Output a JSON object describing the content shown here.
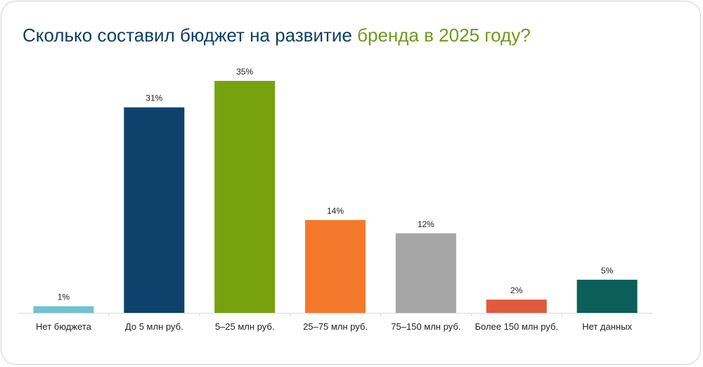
{
  "chart_data": {
    "type": "bar",
    "title_part1": "Сколько составил бюджет на развитие",
    "title_part2": "бренда в 2025 году?",
    "categories": [
      "Нет бюджета",
      "До 5 млн руб.",
      "5–25 млн руб.",
      "25–75 млн руб.",
      "75–150 млн руб.",
      "Более 150 млн руб.",
      "Нет данных"
    ],
    "values": [
      1,
      31,
      35,
      14,
      12,
      2,
      5
    ],
    "value_labels": [
      "1%",
      "31%",
      "35%",
      "14%",
      "12%",
      "2%",
      "5%"
    ],
    "colors": [
      "#71c3ce",
      "#0e426d",
      "#77a20e",
      "#f5792b",
      "#a6a6a6",
      "#e05a3c",
      "#0b5e5a"
    ],
    "ylim": [
      0,
      35
    ],
    "xlabel": "",
    "ylabel": "",
    "grid": false
  },
  "colors": {
    "title_primary": "#0f3f63",
    "title_accent": "#6f9a1a",
    "axis": "#d9d9d9",
    "label": "#222222"
  }
}
